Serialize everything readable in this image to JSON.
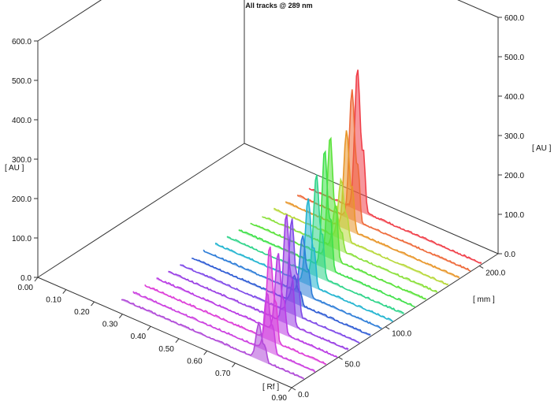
{
  "chart_data": {
    "type": "area",
    "title": "All tracks @ 289 nm",
    "left_unit": "[ AU ]",
    "right_unit": "[ AU ]",
    "rf_unit": "[ Rf ]",
    "mm_unit": "[ mm ]",
    "au_ticks": [
      "0.0",
      "100.0",
      "200.0",
      "300.0",
      "400.0",
      "500.0",
      "600.0"
    ],
    "rf_ticks": [
      "0.00",
      "0.10",
      "0.20",
      "0.30",
      "0.40",
      "0.50",
      "0.60",
      "0.70",
      "0.90"
    ],
    "mm_ticks": [
      "0.0",
      "50.0",
      "100.0",
      "200.0"
    ],
    "ylim": [
      0,
      600
    ],
    "grid": false,
    "series": [
      {
        "track": 1,
        "color": "#b04ad8",
        "peak_rf": 0.74,
        "peak_au": 90
      },
      {
        "track": 2,
        "color": "#cc40e0",
        "peak_rf": 0.73,
        "peak_au": 150
      },
      {
        "track": 3,
        "color": "#dd3ed8",
        "peak_rf": 0.7,
        "peak_au": 240
      },
      {
        "track": 4,
        "color": "#b93ae4",
        "peak_rf": 0.69,
        "peak_au": 200
      },
      {
        "track": 5,
        "color": "#9a40e4",
        "peak_rf": 0.68,
        "peak_au": 280
      },
      {
        "track": 6,
        "color": "#7f4ae8",
        "peak_rf": 0.66,
        "peak_au": 240
      },
      {
        "track": 7,
        "color": "#2f5cd4",
        "peak_rf": 0.63,
        "peak_au": 70
      },
      {
        "track": 8,
        "color": "#2f7ed8",
        "peak_rf": 0.62,
        "peak_au": 150
      },
      {
        "track": 9,
        "color": "#22b4d0",
        "peak_rf": 0.6,
        "peak_au": 220
      },
      {
        "track": 10,
        "color": "#2fd48a",
        "peak_rf": 0.59,
        "peak_au": 260
      },
      {
        "track": 11,
        "color": "#3fe04a",
        "peak_rf": 0.58,
        "peak_au": 300
      },
      {
        "track": 12,
        "color": "#5ae23a",
        "peak_rf": 0.56,
        "peak_au": 310
      },
      {
        "track": 13,
        "color": "#8ae03a",
        "peak_rf": 0.54,
        "peak_au": 110
      },
      {
        "track": 14,
        "color": "#b8d83a",
        "peak_rf": 0.52,
        "peak_au": 150
      },
      {
        "track": 15,
        "color": "#e8962a",
        "peak_rf": 0.5,
        "peak_au": 250
      },
      {
        "track": 16,
        "color": "#ee6a3a",
        "peak_rf": 0.48,
        "peak_au": 330
      },
      {
        "track": 17,
        "color": "#f0404a",
        "peak_rf": 0.46,
        "peak_au": 360
      }
    ]
  }
}
